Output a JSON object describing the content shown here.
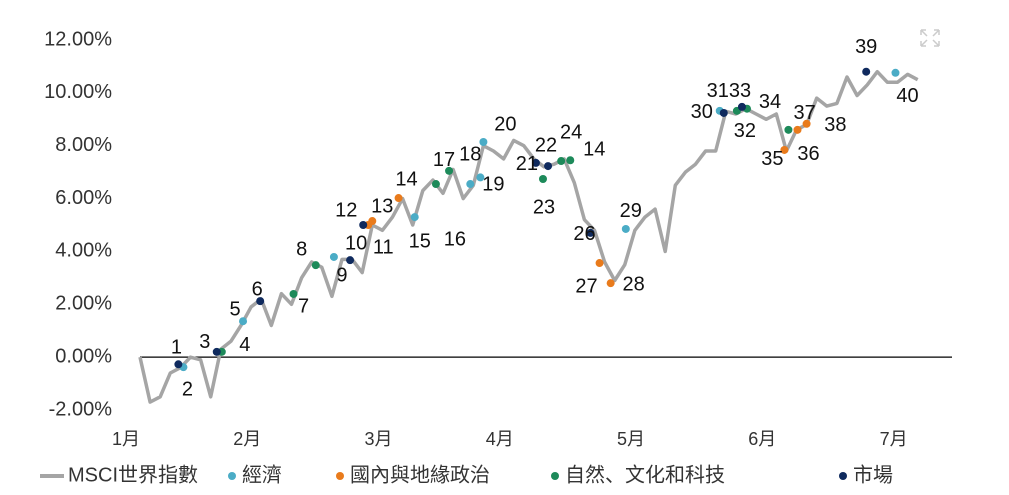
{
  "chart_data": {
    "type": "line",
    "categories": [
      "1月",
      null,
      null,
      null,
      null,
      null,
      null,
      null,
      null,
      null,
      null,
      null,
      "2月",
      null,
      null,
      null,
      null,
      null,
      null,
      null,
      null,
      null,
      null,
      null,
      null,
      "3月",
      null,
      null,
      null,
      null,
      null,
      null,
      null,
      null,
      null,
      null,
      null,
      "4月",
      null,
      null,
      null,
      null,
      null,
      null,
      null,
      null,
      null,
      null,
      null,
      null,
      "5月",
      null,
      null,
      null,
      null,
      null,
      null,
      null,
      null,
      null,
      null,
      null,
      null,
      "6月",
      null,
      null,
      null,
      null,
      null,
      null,
      null,
      null,
      null,
      null,
      null,
      null,
      "7月",
      null
    ],
    "ylim": [
      -2,
      12
    ],
    "yticks": [
      {
        "value": -2,
        "label": "-2.00%"
      },
      {
        "value": 0,
        "label": "0.00%"
      },
      {
        "value": 2,
        "label": "2.00%"
      },
      {
        "value": 4,
        "label": "4.00%"
      },
      {
        "value": 6,
        "label": "6.00%"
      },
      {
        "value": 8,
        "label": "8.00%"
      },
      {
        "value": 10,
        "label": "10.00%"
      },
      {
        "value": 12,
        "label": "12.00%"
      }
    ],
    "series": [
      {
        "name": "MSCI世界指數",
        "color": "#a5a5a5",
        "values": [
          0,
          -1.7,
          -1.5,
          -0.6,
          -0.4,
          0.0,
          -0.1,
          -1.5,
          0.3,
          0.6,
          1.2,
          1.9,
          2.2,
          1.2,
          2.4,
          2.0,
          3.0,
          3.6,
          3.4,
          2.3,
          3.7,
          3.7,
          3.2,
          5.0,
          4.8,
          5.3,
          6.0,
          5.0,
          6.3,
          6.7,
          6.2,
          7.1,
          6.0,
          6.5,
          8.0,
          7.8,
          7.5,
          8.2,
          8.0,
          7.5,
          7.2,
          7.3,
          7.5,
          6.6,
          5.2,
          4.8,
          3.6,
          2.9,
          3.5,
          4.8,
          5.3,
          5.6,
          4.0,
          6.5,
          7.0,
          7.3,
          7.8,
          7.8,
          9.3,
          9.2,
          9.4,
          9.2,
          9.0,
          9.2,
          7.8,
          8.6,
          8.8,
          9.8,
          9.5,
          9.6,
          10.6,
          9.9,
          10.3,
          10.8,
          10.4,
          10.4,
          10.7,
          10.5
        ]
      }
    ],
    "events": [
      {
        "name": "經濟",
        "color": "#4bacc6",
        "points": [
          {
            "label": "2",
            "x": 4.3,
            "y": -0.38
          },
          {
            "label": "5",
            "x": 10.2,
            "y": 1.36
          },
          {
            "label": "9",
            "x": 19.2,
            "y": 3.79
          },
          {
            "label": "15",
            "x": 27.2,
            "y": 5.3
          },
          {
            "label": "18",
            "x": 32.7,
            "y": 6.55
          },
          {
            "label": "19",
            "x": 33.7,
            "y": 6.8
          },
          {
            "label": "20",
            "x": 34.0,
            "y": 8.14
          },
          {
            "label": "29",
            "x": 48.1,
            "y": 4.85
          },
          {
            "label": "31",
            "x": 57.4,
            "y": 9.32
          },
          {
            "label": "40",
            "x": 74.8,
            "y": 10.76
          }
        ]
      },
      {
        "name": "國內與地緣政治",
        "color": "#e97b1c",
        "points": [
          {
            "label": "11",
            "x": 22.6,
            "y": 5.0
          },
          {
            "label": "13",
            "x": 23.0,
            "y": 5.15
          },
          {
            "label": "14",
            "x": 25.6,
            "y": 6.02
          },
          {
            "label": "27",
            "x": 45.5,
            "y": 3.56
          },
          {
            "label": "28",
            "x": 46.6,
            "y": 2.8
          },
          {
            "label": "35",
            "x": 63.8,
            "y": 7.84
          },
          {
            "label": "36",
            "x": 65.1,
            "y": 8.6
          },
          {
            "label": "37",
            "x": 66.0,
            "y": 8.83
          }
        ]
      },
      {
        "name": "自然、文化和科技",
        "color": "#1d8a5a",
        "points": [
          {
            "label": "4",
            "x": 8.1,
            "y": 0.2
          },
          {
            "label": "7",
            "x": 15.2,
            "y": 2.39
          },
          {
            "label": "8",
            "x": 17.4,
            "y": 3.48
          },
          {
            "label": "16",
            "x": 29.3,
            "y": 6.55
          },
          {
            "label": "17",
            "x": 30.6,
            "y": 7.05
          },
          {
            "label": "23",
            "x": 39.9,
            "y": 6.74
          },
          {
            "label": "24",
            "x": 41.7,
            "y": 7.42
          },
          {
            "label": "14",
            "x": 42.6,
            "y": 7.45
          },
          {
            "label": "32",
            "x": 59.1,
            "y": 9.32
          },
          {
            "label": "34",
            "x": 60.1,
            "y": 9.4
          },
          {
            "label": "38",
            "x": 64.2,
            "y": 8.6
          }
        ]
      },
      {
        "name": "市場",
        "color": "#0f2a5e",
        "points": [
          {
            "label": "1",
            "x": 3.8,
            "y": -0.27
          },
          {
            "label": "3",
            "x": 7.6,
            "y": 0.2
          },
          {
            "label": "6",
            "x": 11.9,
            "y": 2.12
          },
          {
            "label": "10",
            "x": 20.8,
            "y": 3.67
          },
          {
            "label": "12",
            "x": 22.1,
            "y": 5.0
          },
          {
            "label": "21",
            "x": 39.2,
            "y": 7.35
          },
          {
            "label": "22",
            "x": 40.4,
            "y": 7.23
          },
          {
            "label": "26",
            "x": 44.6,
            "y": 4.7
          },
          {
            "label": "30",
            "x": 57.8,
            "y": 9.24
          },
          {
            "label": "33",
            "x": 59.6,
            "y": 9.47
          },
          {
            "label": "39",
            "x": 71.9,
            "y": 10.8
          }
        ]
      }
    ]
  }
}
